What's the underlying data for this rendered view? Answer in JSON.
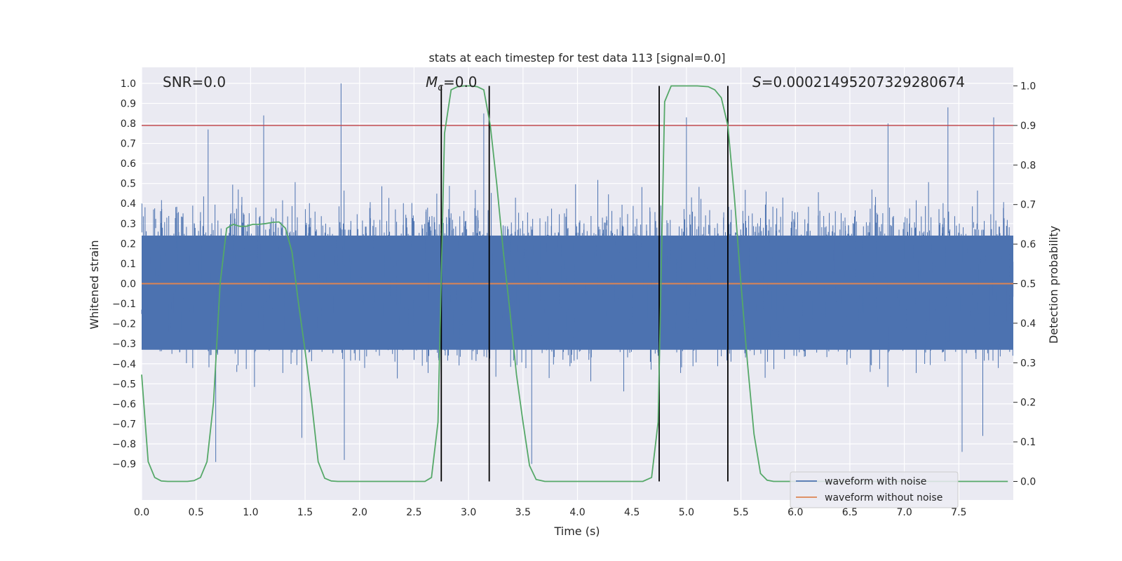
{
  "chart_data": {
    "type": "line",
    "title": "stats at each timestep for test data 113 [signal=0.0]",
    "xlabel": "Time (s)",
    "ylabel": "Whitened strain",
    "y2label": "Detection probability",
    "xlim": [
      0.0,
      8.0
    ],
    "ylim": [
      -1.08,
      1.08
    ],
    "y2lim": [
      -0.047,
      1.047
    ],
    "x_ticks": [
      "0.0",
      "0.5",
      "1.0",
      "1.5",
      "2.0",
      "2.5",
      "3.0",
      "3.5",
      "4.0",
      "4.5",
      "5.0",
      "5.5",
      "6.0",
      "6.5",
      "7.0",
      "7.5"
    ],
    "y_ticks": [
      "1.0",
      "0.9",
      "0.8",
      "0.7",
      "0.6",
      "0.5",
      "0.4",
      "0.3",
      "0.2",
      "0.1",
      "0.0",
      "−0.1",
      "−0.2",
      "−0.3",
      "−0.4",
      "−0.5",
      "−0.6",
      "−0.7",
      "−0.8",
      "−0.9"
    ],
    "y2_ticks": [
      "1.0",
      "0.9",
      "0.8",
      "0.7",
      "0.6",
      "0.5",
      "0.4",
      "0.3",
      "0.2",
      "0.1",
      "0.0"
    ],
    "grid": true,
    "legend_position": "lower-right",
    "annotations": {
      "snr": "SNR=0.0",
      "mc_symbol": "M",
      "mc_sub": "c",
      "mc_value": "=0.0",
      "s_symbol": "S",
      "s_value": "=0.00021495207329280674"
    },
    "threshold_probability": 0.9,
    "vertical_lines_x": [
      2.75,
      3.19,
      4.75,
      5.38
    ],
    "series": [
      {
        "name": "waveform with noise",
        "color": "#4c72b0",
        "axis": "left",
        "noise_envelope": {
          "core_low": -0.33,
          "core_high": 0.24
        },
        "peaks": [
          {
            "x": 0.61,
            "y": 0.77
          },
          {
            "x": 1.12,
            "y": 0.84
          },
          {
            "x": 1.83,
            "y": 1.0
          },
          {
            "x": 3.14,
            "y": 0.85
          },
          {
            "x": 5.0,
            "y": 0.83
          },
          {
            "x": 6.85,
            "y": 0.8
          },
          {
            "x": 7.4,
            "y": 0.88
          },
          {
            "x": 7.82,
            "y": 0.83
          },
          {
            "x": 0.68,
            "y": -0.89
          },
          {
            "x": 1.86,
            "y": -0.88
          },
          {
            "x": 3.58,
            "y": -0.9
          },
          {
            "x": 7.53,
            "y": -0.84
          },
          {
            "x": 7.72,
            "y": -0.76
          },
          {
            "x": 1.47,
            "y": -0.77
          }
        ]
      },
      {
        "name": "waveform without noise",
        "color": "#dd8452",
        "axis": "left",
        "x": [
          0.0,
          8.0
        ],
        "y": [
          0.0,
          0.0
        ]
      },
      {
        "name": "Detection probability",
        "color": "#55a868",
        "axis": "right",
        "x": [
          0.0,
          0.06,
          0.12,
          0.18,
          0.24,
          0.3,
          0.36,
          0.42,
          0.48,
          0.54,
          0.6,
          0.66,
          0.72,
          0.78,
          0.84,
          0.9,
          0.96,
          1.02,
          1.08,
          1.14,
          1.2,
          1.26,
          1.32,
          1.38,
          1.44,
          1.5,
          1.56,
          1.62,
          1.68,
          1.74,
          1.8,
          2.0,
          2.2,
          2.4,
          2.6,
          2.66,
          2.72,
          2.78,
          2.84,
          2.9,
          2.96,
          3.02,
          3.08,
          3.14,
          3.2,
          3.26,
          3.32,
          3.38,
          3.44,
          3.5,
          3.56,
          3.62,
          3.7,
          4.0,
          4.3,
          4.6,
          4.68,
          4.74,
          4.8,
          4.86,
          4.92,
          5.0,
          5.1,
          5.2,
          5.26,
          5.32,
          5.38,
          5.44,
          5.5,
          5.56,
          5.62,
          5.68,
          5.74,
          5.8,
          6.0,
          6.5,
          7.0,
          7.5,
          7.95
        ],
        "y": [
          0.27,
          0.05,
          0.01,
          0.001,
          0.0,
          0.0,
          0.0,
          0.0,
          0.002,
          0.01,
          0.05,
          0.2,
          0.5,
          0.64,
          0.65,
          0.645,
          0.645,
          0.65,
          0.65,
          0.652,
          0.655,
          0.656,
          0.64,
          0.58,
          0.45,
          0.33,
          0.2,
          0.05,
          0.008,
          0.001,
          0.0,
          0.0,
          0.0,
          0.0,
          0.0,
          0.01,
          0.15,
          0.88,
          0.99,
          0.998,
          1.0,
          1.0,
          0.998,
          0.99,
          0.9,
          0.75,
          0.58,
          0.43,
          0.27,
          0.15,
          0.04,
          0.005,
          0.0,
          0.0,
          0.0,
          0.0,
          0.01,
          0.15,
          0.96,
          1.0,
          1.0,
          1.0,
          1.0,
          0.998,
          0.99,
          0.97,
          0.9,
          0.72,
          0.5,
          0.3,
          0.12,
          0.02,
          0.003,
          0.0,
          0.0,
          0.0,
          0.0,
          0.0,
          0.0
        ]
      }
    ]
  }
}
